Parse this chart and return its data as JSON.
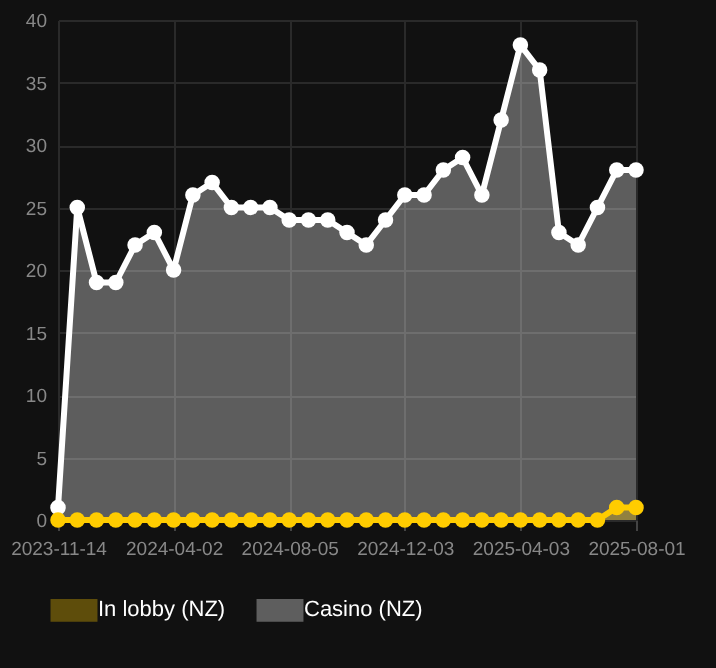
{
  "chart_data": {
    "type": "area",
    "categories": [
      "2023-11-14",
      null,
      null,
      null,
      null,
      null,
      "2024-04-02",
      null,
      null,
      null,
      null,
      null,
      "2024-08-05",
      null,
      null,
      null,
      null,
      null,
      "2024-12-03",
      null,
      null,
      null,
      null,
      null,
      "2025-04-03",
      null,
      null,
      null,
      null,
      null,
      "2025-08-01"
    ],
    "series": [
      {
        "name": "In lobby (NZ)",
        "color": "#ffcc00",
        "values": [
          0,
          0,
          0,
          0,
          0,
          0,
          0,
          0,
          0,
          0,
          0,
          0,
          0,
          0,
          0,
          0,
          0,
          0,
          0,
          0,
          0,
          0,
          0,
          0,
          0,
          0,
          0,
          0,
          0,
          1,
          1
        ]
      },
      {
        "name": "Casino (NZ)",
        "color": "#ffffff",
        "values": [
          1,
          25,
          19,
          19,
          22,
          23,
          20,
          26,
          27,
          25,
          25,
          25,
          24,
          24,
          24,
          23,
          22,
          24,
          26,
          26,
          28,
          29,
          26,
          32,
          38,
          36,
          23,
          22,
          25,
          28,
          28
        ]
      }
    ],
    "ylim": [
      0,
      40
    ],
    "yticks": [
      0,
      5,
      10,
      15,
      20,
      25,
      30,
      35,
      40
    ],
    "grid": true,
    "legend": "bottom",
    "marker": "circle",
    "line_style": "solid"
  }
}
